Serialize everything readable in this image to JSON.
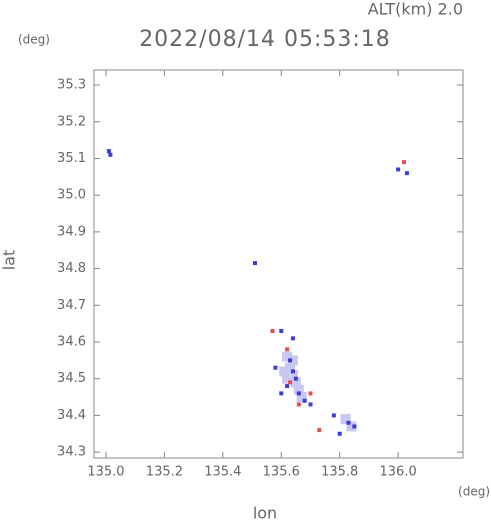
{
  "chart_data": {
    "type": "scatter",
    "title": "2022/08/14 05:53:18",
    "subtitle": "ALT(km) 2.0",
    "y_unit": "(deg)",
    "x_unit": "(deg)",
    "x_label": "lon",
    "y_label": "lat",
    "xlim": [
      134.959,
      136.222
    ],
    "ylim": [
      34.284,
      35.341
    ],
    "xticks": [
      {
        "value": 135,
        "label": "135.0"
      },
      135.2,
      135.4,
      135.6,
      135.8,
      {
        "value": 136,
        "label": "136.0"
      }
    ],
    "yticks": [
      34.3,
      34.4,
      34.5,
      34.6,
      34.7,
      34.8,
      34.9,
      {
        "value": 35,
        "label": "35.0"
      },
      35.1,
      35.2,
      35.3
    ],
    "series": [
      {
        "color": "#c8c8f0",
        "x": [
          135.62,
          135.63,
          135.64,
          135.65,
          135.66,
          135.62,
          135.64,
          135.61,
          135.67,
          135.82,
          135.84
        ],
        "values": [
          34.56,
          34.53,
          34.51,
          34.49,
          34.47,
          34.5,
          34.55,
          34.52,
          34.45,
          34.39,
          34.37
        ]
      },
      {
        "color": "#3c3cdc",
        "x": [
          135.01,
          135.015,
          135.51,
          135.63,
          135.64,
          135.65,
          135.62,
          135.66,
          135.68,
          135.7,
          135.64,
          135.6,
          135.78,
          135.83,
          135.85,
          135.8,
          136.0,
          136.03,
          135.6,
          135.58
        ],
        "values": [
          35.12,
          35.11,
          34.815,
          34.55,
          34.52,
          34.5,
          34.48,
          34.46,
          34.44,
          34.43,
          34.61,
          34.63,
          34.4,
          34.38,
          34.37,
          34.35,
          35.07,
          35.06,
          34.46,
          34.53
        ]
      },
      {
        "color": "#e05050",
        "x": [
          135.57,
          135.62,
          135.73,
          135.66,
          136.02,
          135.7,
          135.63
        ],
        "values": [
          34.63,
          34.58,
          34.36,
          34.43,
          35.09,
          34.46,
          34.49
        ]
      }
    ]
  }
}
